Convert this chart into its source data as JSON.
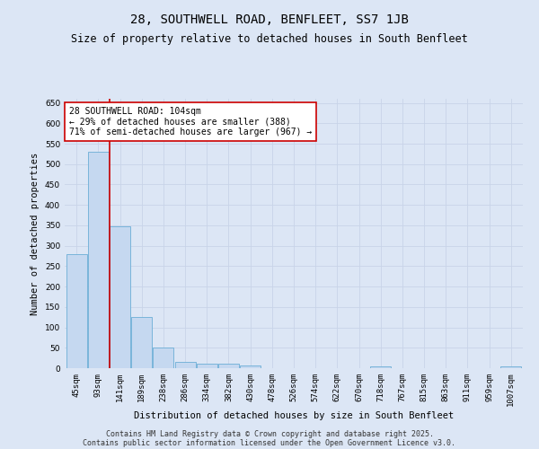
{
  "title": "28, SOUTHWELL ROAD, BENFLEET, SS7 1JB",
  "subtitle": "Size of property relative to detached houses in South Benfleet",
  "xlabel": "Distribution of detached houses by size in South Benfleet",
  "ylabel": "Number of detached properties",
  "categories": [
    "45sqm",
    "93sqm",
    "141sqm",
    "189sqm",
    "238sqm",
    "286sqm",
    "334sqm",
    "382sqm",
    "430sqm",
    "478sqm",
    "526sqm",
    "574sqm",
    "622sqm",
    "670sqm",
    "718sqm",
    "767sqm",
    "815sqm",
    "863sqm",
    "911sqm",
    "959sqm",
    "1007sqm"
  ],
  "values": [
    280,
    530,
    348,
    125,
    50,
    15,
    10,
    10,
    6,
    0,
    0,
    0,
    0,
    0,
    5,
    0,
    0,
    0,
    0,
    0,
    5
  ],
  "bar_color": "#c5d8f0",
  "bar_edge_color": "#6baed6",
  "red_line_x": 1.5,
  "annotation_text_line1": "28 SOUTHWELL ROAD: 104sqm",
  "annotation_text_line2": "← 29% of detached houses are smaller (388)",
  "annotation_text_line3": "71% of semi-detached houses are larger (967) →",
  "annotation_box_facecolor": "#ffffff",
  "annotation_box_edgecolor": "#cc0000",
  "red_line_color": "#cc0000",
  "ylim": [
    0,
    660
  ],
  "yticks": [
    0,
    50,
    100,
    150,
    200,
    250,
    300,
    350,
    400,
    450,
    500,
    550,
    600,
    650
  ],
  "grid_color": "#c8d4e8",
  "bg_color": "#dce6f5",
  "footer_line1": "Contains HM Land Registry data © Crown copyright and database right 2025.",
  "footer_line2": "Contains public sector information licensed under the Open Government Licence v3.0.",
  "title_fontsize": 10,
  "subtitle_fontsize": 8.5,
  "axis_label_fontsize": 7.5,
  "tick_fontsize": 6.5,
  "annotation_fontsize": 7,
  "footer_fontsize": 6
}
